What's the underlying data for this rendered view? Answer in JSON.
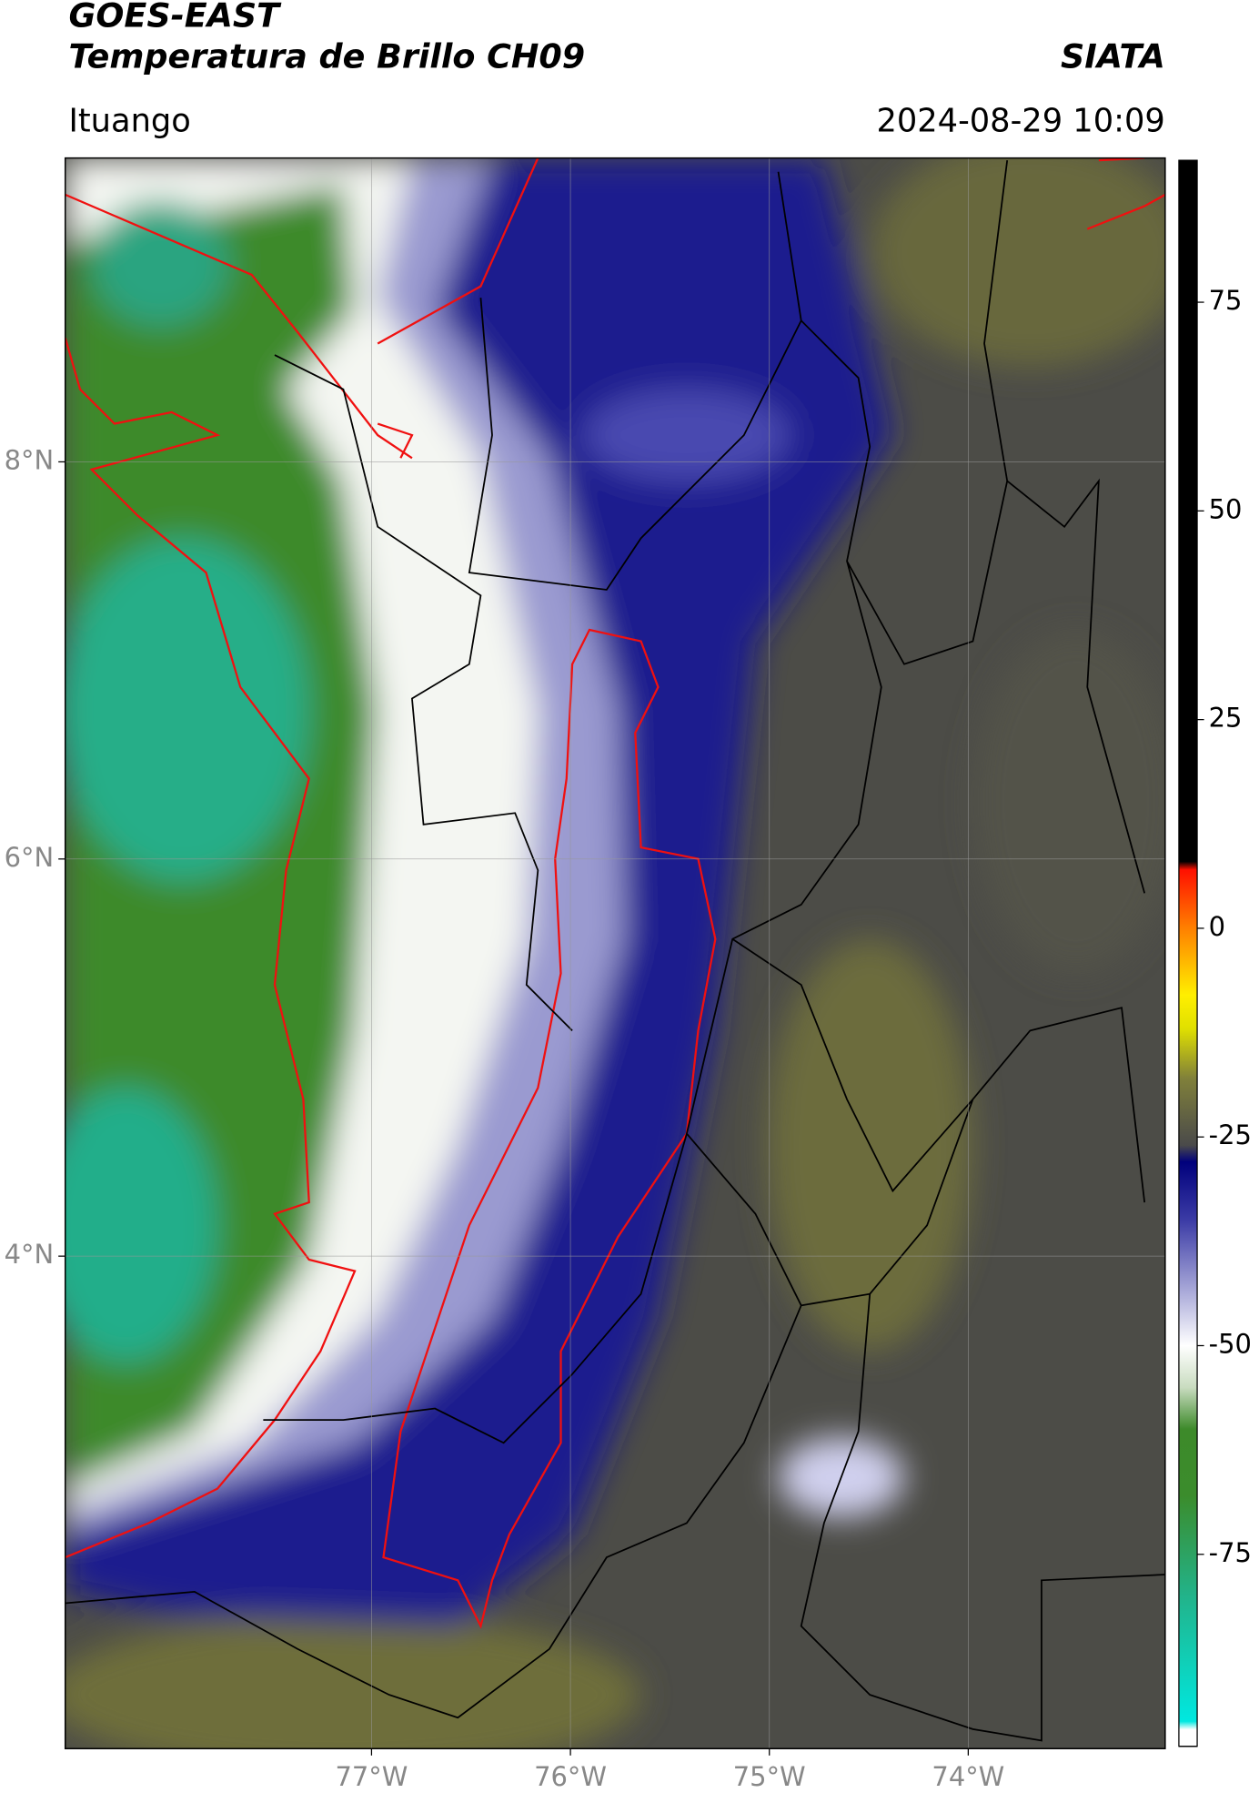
{
  "header": {
    "title": "GOES-EAST",
    "subtitle": "Temperatura de Brillo CH09",
    "source": "SIATA",
    "location": "Ituango",
    "datetime": "2024-08-29 10:09"
  },
  "chart_data": {
    "type": "map",
    "xlim": [
      -78.54,
      -73.01
    ],
    "ylim": [
      1.52,
      9.53
    ],
    "xticks": [
      {
        "value": -77,
        "label": "77°W"
      },
      {
        "value": -76,
        "label": "76°W"
      },
      {
        "value": -75,
        "label": "75°W"
      },
      {
        "value": -74,
        "label": "74°W"
      }
    ],
    "yticks": [
      {
        "value": 8,
        "label": "8°N"
      },
      {
        "value": 6,
        "label": "6°N"
      },
      {
        "value": 4,
        "label": "4°N"
      }
    ],
    "grid": true,
    "colorbar": {
      "clim": [
        -98,
        92
      ],
      "ticks": [
        75,
        50,
        25,
        0,
        -25,
        -50,
        -75
      ],
      "colormap": [
        {
          "value": -98,
          "color": "#ffffff"
        },
        {
          "value": -96,
          "color": "#ffffff"
        },
        {
          "value": -95,
          "color": "#00e8e0"
        },
        {
          "value": -80,
          "color": "#22b38a"
        },
        {
          "value": -68,
          "color": "#3b8c2c"
        },
        {
          "value": -60,
          "color": "#3d8a2a"
        },
        {
          "value": -55,
          "color": "#c9dcc0"
        },
        {
          "value": -50,
          "color": "#ffffff"
        },
        {
          "value": -44,
          "color": "#b0b0dc"
        },
        {
          "value": -35,
          "color": "#3c3ca6"
        },
        {
          "value": -28,
          "color": "#00007c"
        },
        {
          "value": -26,
          "color": "#4a4a4a"
        },
        {
          "value": -18,
          "color": "#80803a"
        },
        {
          "value": -12,
          "color": "#e0e000"
        },
        {
          "value": -8,
          "color": "#ffef00"
        },
        {
          "value": 0,
          "color": "#ff8000"
        },
        {
          "value": 7,
          "color": "#ff1000"
        },
        {
          "value": 8,
          "color": "#000000"
        },
        {
          "value": 92,
          "color": "#000000"
        }
      ]
    }
  }
}
